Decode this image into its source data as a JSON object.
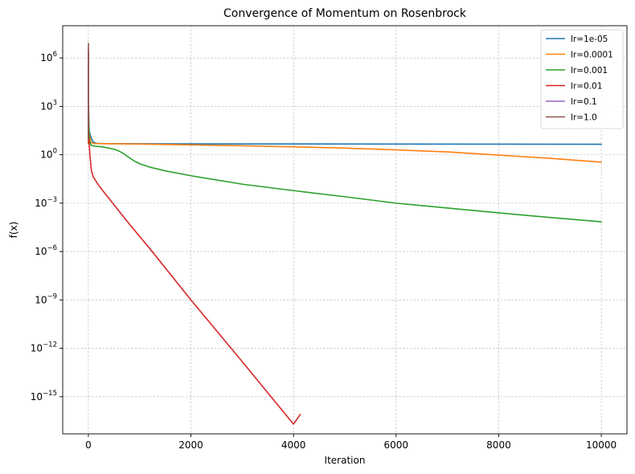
{
  "chart_data": {
    "type": "line",
    "title": "Convergence of Momentum on Rosenbrock",
    "xlabel": "Iteration",
    "ylabel": "f(x)",
    "xlim": [
      -500,
      10500
    ],
    "ylim_log10": [
      -17.3,
      8.0
    ],
    "yscale": "log",
    "xticks": [
      0,
      2000,
      4000,
      6000,
      8000,
      10000
    ],
    "xtick_labels": [
      "0",
      "2000",
      "4000",
      "6000",
      "8000",
      "10000"
    ],
    "yticks_log10": [
      -15,
      -12,
      -9,
      -6,
      -3,
      0,
      3,
      6
    ],
    "ytick_labels": [
      {
        "base": "10",
        "exp": "−15"
      },
      {
        "base": "10",
        "exp": "−12"
      },
      {
        "base": "10",
        "exp": "−9"
      },
      {
        "base": "10",
        "exp": "−6"
      },
      {
        "base": "10",
        "exp": "−3"
      },
      {
        "base": "10",
        "exp": "0"
      },
      {
        "base": "10",
        "exp": "3"
      },
      {
        "base": "10",
        "exp": "6"
      }
    ],
    "grid": true,
    "legend_position": "top-right",
    "series": [
      {
        "name": "lr=1e-05",
        "color": "#1f77b4",
        "x": [
          0,
          10,
          30,
          60,
          100,
          150,
          200,
          400,
          1000,
          3000,
          6000,
          10000
        ],
        "y": [
          30,
          40,
          20,
          10,
          6,
          5.2,
          5.0,
          4.9,
          4.8,
          4.7,
          4.6,
          4.5
        ]
      },
      {
        "name": "lr=0.0001",
        "color": "#ff7f0e",
        "x": [
          0,
          10,
          50,
          100,
          300,
          1000,
          2000,
          3000,
          4000,
          5000,
          6000,
          7000,
          8000,
          9000,
          10000
        ],
        "y": [
          5,
          25,
          6,
          5.0,
          4.9,
          4.6,
          4.1,
          3.6,
          3.1,
          2.6,
          2.0,
          1.5,
          0.95,
          0.6,
          0.35
        ]
      },
      {
        "name": "lr=0.001",
        "color": "#2ca02c",
        "x": [
          0,
          5,
          20,
          50,
          100,
          300,
          500,
          600,
          700,
          800,
          900,
          1000,
          1200,
          1500,
          2000,
          3000,
          4000,
          5000,
          6000,
          7000,
          8000,
          9000,
          10000
        ],
        "y": [
          10,
          1000,
          8,
          4,
          3.5,
          3.0,
          2.2,
          1.7,
          1.1,
          0.65,
          0.4,
          0.28,
          0.17,
          0.1,
          0.05,
          0.015,
          0.006,
          0.0025,
          0.001,
          0.0005,
          0.00025,
          0.00013,
          7e-05
        ]
      },
      {
        "name": "lr=0.01",
        "color": "#d62728",
        "x": [
          0,
          5,
          10,
          30,
          60,
          100,
          200,
          300,
          500,
          800,
          1200,
          2000,
          3000,
          4000,
          4130
        ],
        "y": [
          3000000,
          5,
          10,
          1,
          0.1,
          0.04,
          0.013,
          0.005,
          0.0008,
          5e-05,
          1.5e-06,
          1e-09,
          1.5e-13,
          2e-17,
          8e-17
        ]
      },
      {
        "name": "lr=0.1",
        "color": "#9467bd",
        "x": [
          0,
          2,
          4
        ],
        "y": [
          100,
          2000000,
          500000
        ]
      },
      {
        "name": "lr=1.0",
        "color": "#8c564b",
        "x": [
          0,
          1,
          2,
          3,
          4
        ],
        "y": [
          10,
          50000,
          8000000,
          3000,
          30
        ]
      }
    ]
  }
}
